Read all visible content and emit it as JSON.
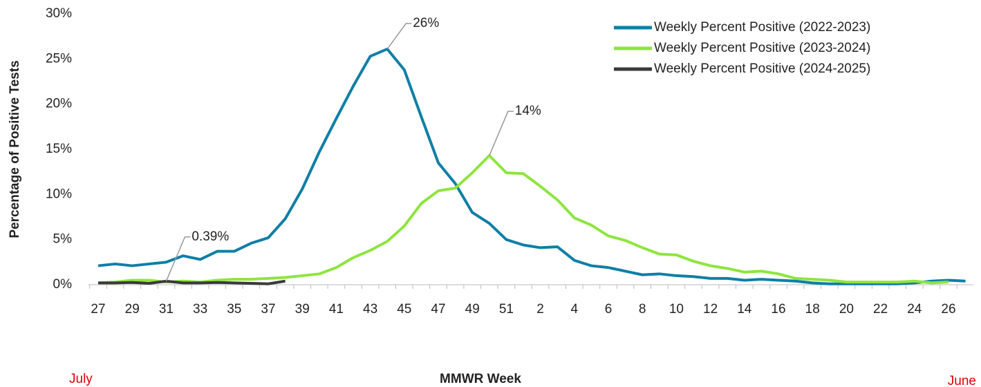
{
  "chart_data": {
    "type": "line",
    "x_label": "MMWR Week",
    "y_label": "Percentage of Positive Tests",
    "start_label": "July",
    "end_label": "June",
    "categories": [
      "27",
      null,
      "29",
      null,
      "31",
      null,
      "33",
      null,
      "35",
      null,
      "37",
      null,
      "39",
      null,
      "41",
      null,
      "43",
      null,
      "45",
      null,
      "47",
      null,
      "49",
      null,
      "51",
      null,
      "2",
      null,
      "4",
      null,
      "6",
      null,
      "8",
      null,
      "10",
      null,
      "12",
      null,
      "14",
      null,
      "16",
      null,
      "18",
      null,
      "20",
      null,
      "22",
      null,
      "24",
      null,
      "26",
      null
    ],
    "ylim": [
      0,
      30
    ],
    "yticks": [
      {
        "value": 0,
        "label": "0%"
      },
      {
        "value": 5,
        "label": "5%"
      },
      {
        "value": 10,
        "label": "10%"
      },
      {
        "value": 15,
        "label": "15%"
      },
      {
        "value": 20,
        "label": "20%"
      },
      {
        "value": 25,
        "label": "25%"
      },
      {
        "value": 30,
        "label": "30%"
      }
    ],
    "legend": "top-right",
    "series": [
      {
        "name": "Weekly Percent Positive (2022-2023)",
        "color": "#0e7fa6",
        "values": [
          2.1,
          2.3,
          2.1,
          2.3,
          2.5,
          3.2,
          2.8,
          3.7,
          3.7,
          4.6,
          5.2,
          7.3,
          10.6,
          14.7,
          18.4,
          22.0,
          25.3,
          26.1,
          23.8,
          18.6,
          13.5,
          11.2,
          8.0,
          6.8,
          5.0,
          4.4,
          4.1,
          4.2,
          2.7,
          2.1,
          1.9,
          1.5,
          1.1,
          1.2,
          1.0,
          0.9,
          0.7,
          0.7,
          0.5,
          0.6,
          0.5,
          0.4,
          0.2,
          0.1,
          0.1,
          0.1,
          0.1,
          0.1,
          0.2,
          0.4,
          0.5,
          0.4
        ],
        "value_labels": [
          null,
          null,
          null,
          null,
          null,
          null,
          null,
          null,
          null,
          null,
          null,
          null,
          null,
          null,
          null,
          null,
          null,
          "26%",
          null,
          null,
          null,
          null,
          null,
          null,
          null,
          null,
          null,
          null,
          null,
          null,
          null,
          null,
          null,
          null,
          null,
          null,
          null,
          null,
          null,
          null,
          null,
          null,
          null,
          null,
          null,
          null,
          null,
          null,
          null,
          null,
          null,
          null
        ]
      },
      {
        "name": "Weekly Percent Positive (2023-2024)",
        "color": "#8ee53f",
        "values": [
          0.2,
          0.3,
          0.5,
          0.5,
          0.3,
          0.4,
          0.3,
          0.5,
          0.6,
          0.6,
          0.7,
          0.8,
          1.0,
          1.2,
          1.9,
          3.0,
          3.8,
          4.8,
          6.5,
          9.0,
          10.4,
          10.7,
          12.4,
          14.3,
          12.4,
          12.3,
          10.9,
          9.4,
          7.4,
          6.6,
          5.4,
          4.9,
          4.1,
          3.4,
          3.3,
          2.6,
          2.1,
          1.8,
          1.4,
          1.5,
          1.2,
          0.7,
          0.6,
          0.5,
          0.3,
          0.3,
          0.3,
          0.3,
          0.4,
          0.2,
          0.3,
          null
        ],
        "value_labels": [
          null,
          null,
          null,
          null,
          null,
          null,
          null,
          null,
          null,
          null,
          null,
          null,
          null,
          null,
          null,
          null,
          null,
          null,
          null,
          null,
          null,
          null,
          null,
          "14%",
          null,
          null,
          null,
          null,
          null,
          null,
          null,
          null,
          null,
          null,
          null,
          null,
          null,
          null,
          null,
          null,
          null,
          null,
          null,
          null,
          null,
          null,
          null,
          null,
          null,
          null,
          null,
          null
        ]
      },
      {
        "name": "Weekly Percent Positive (2024-2025)",
        "color": "#3a3a3a",
        "values": [
          0.2,
          0.2,
          0.25,
          0.15,
          0.39,
          0.2,
          0.2,
          0.25,
          0.2,
          0.15,
          0.1,
          0.4,
          null,
          null,
          null,
          null,
          null,
          null,
          null,
          null,
          null,
          null,
          null,
          null,
          null,
          null,
          null,
          null,
          null,
          null,
          null,
          null,
          null,
          null,
          null,
          null,
          null,
          null,
          null,
          null,
          null,
          null,
          null,
          null,
          null,
          null,
          null,
          null,
          null,
          null,
          null,
          null
        ],
        "value_labels": [
          null,
          null,
          null,
          null,
          "0.39%",
          null,
          null,
          null,
          null,
          null,
          null,
          null,
          null,
          null,
          null,
          null,
          null,
          null,
          null,
          null,
          null,
          null,
          null,
          null,
          null,
          null,
          null,
          null,
          null,
          null,
          null,
          null,
          null,
          null,
          null,
          null,
          null,
          null,
          null,
          null,
          null,
          null,
          null,
          null,
          null,
          null,
          null,
          null,
          null,
          null,
          null,
          null
        ]
      }
    ]
  }
}
